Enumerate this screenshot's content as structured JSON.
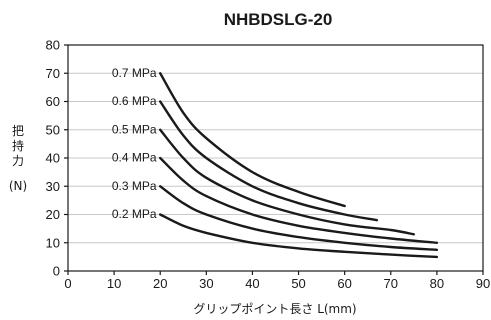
{
  "chart_data": {
    "type": "line",
    "title": "NHBDSLG-20",
    "xlabel": "グリップポイント長さ L(mm)",
    "ylabel_chars": [
      "把",
      "持",
      "力"
    ],
    "ylabel_unit": "(N)",
    "xlim": [
      0,
      90
    ],
    "ylim": [
      0,
      80
    ],
    "xticks": [
      0,
      10,
      20,
      30,
      40,
      50,
      60,
      70,
      80,
      90
    ],
    "yticks": [
      0,
      10,
      20,
      30,
      40,
      50,
      60,
      70,
      80
    ],
    "grid": "horizontal",
    "series": [
      {
        "name": "0.7 MPa",
        "x": [
          20,
          25,
          30,
          40,
          50,
          60
        ],
        "y": [
          70,
          56,
          47,
          35,
          28,
          23
        ]
      },
      {
        "name": "0.6 MPa",
        "x": [
          20,
          25,
          30,
          40,
          50,
          60,
          67
        ],
        "y": [
          60,
          48,
          40,
          30,
          24,
          20,
          18
        ]
      },
      {
        "name": "0.5 MPa",
        "x": [
          20,
          25,
          30,
          40,
          50,
          60,
          70,
          75
        ],
        "y": [
          50,
          40,
          33,
          25,
          20,
          16.5,
          14.5,
          13
        ]
      },
      {
        "name": "0.4 MPa",
        "x": [
          20,
          25,
          30,
          40,
          50,
          60,
          70,
          80
        ],
        "y": [
          40,
          32,
          26.5,
          20,
          16,
          13.5,
          11.5,
          10
        ]
      },
      {
        "name": "0.3 MPa",
        "x": [
          20,
          25,
          30,
          40,
          50,
          60,
          70,
          80
        ],
        "y": [
          30,
          24,
          20,
          15,
          12,
          10,
          8.5,
          7.5
        ]
      },
      {
        "name": "0.2 MPa",
        "x": [
          20,
          25,
          30,
          40,
          50,
          60,
          70,
          80
        ],
        "y": [
          20,
          16,
          13.5,
          10,
          8,
          6.8,
          5.8,
          5
        ]
      }
    ]
  }
}
